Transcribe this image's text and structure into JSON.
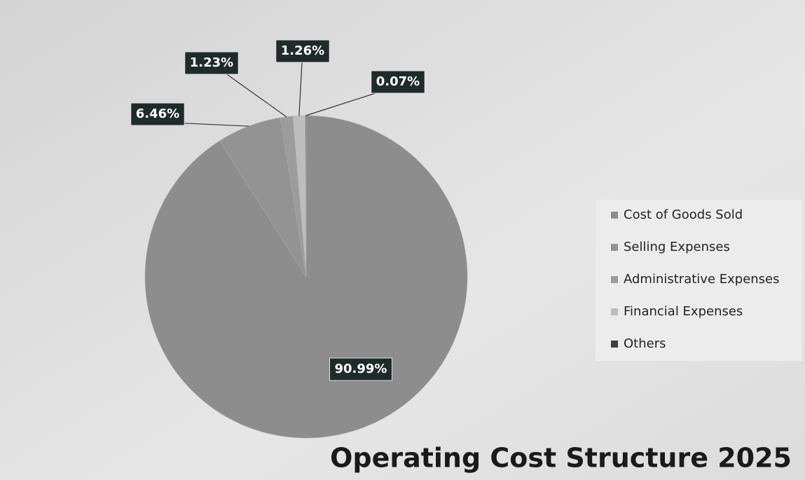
{
  "chart_data": {
    "type": "pie",
    "title": "Operating Cost Structure 2025",
    "categories": [
      "Cost of Goods Sold",
      "Selling Expenses",
      "Administrative Expenses",
      "Financial Expenses",
      "Others"
    ],
    "values": [
      90.99,
      6.46,
      1.23,
      1.26,
      0.07
    ],
    "value_labels": [
      "90.99%",
      "6.46%",
      "1.23%",
      "1.26%",
      "0.07%"
    ],
    "colors": [
      "#8d8d8d",
      "#939393",
      "#9c9c9c",
      "#bdbdbd",
      "#3d3d3d"
    ],
    "legend": "right"
  }
}
